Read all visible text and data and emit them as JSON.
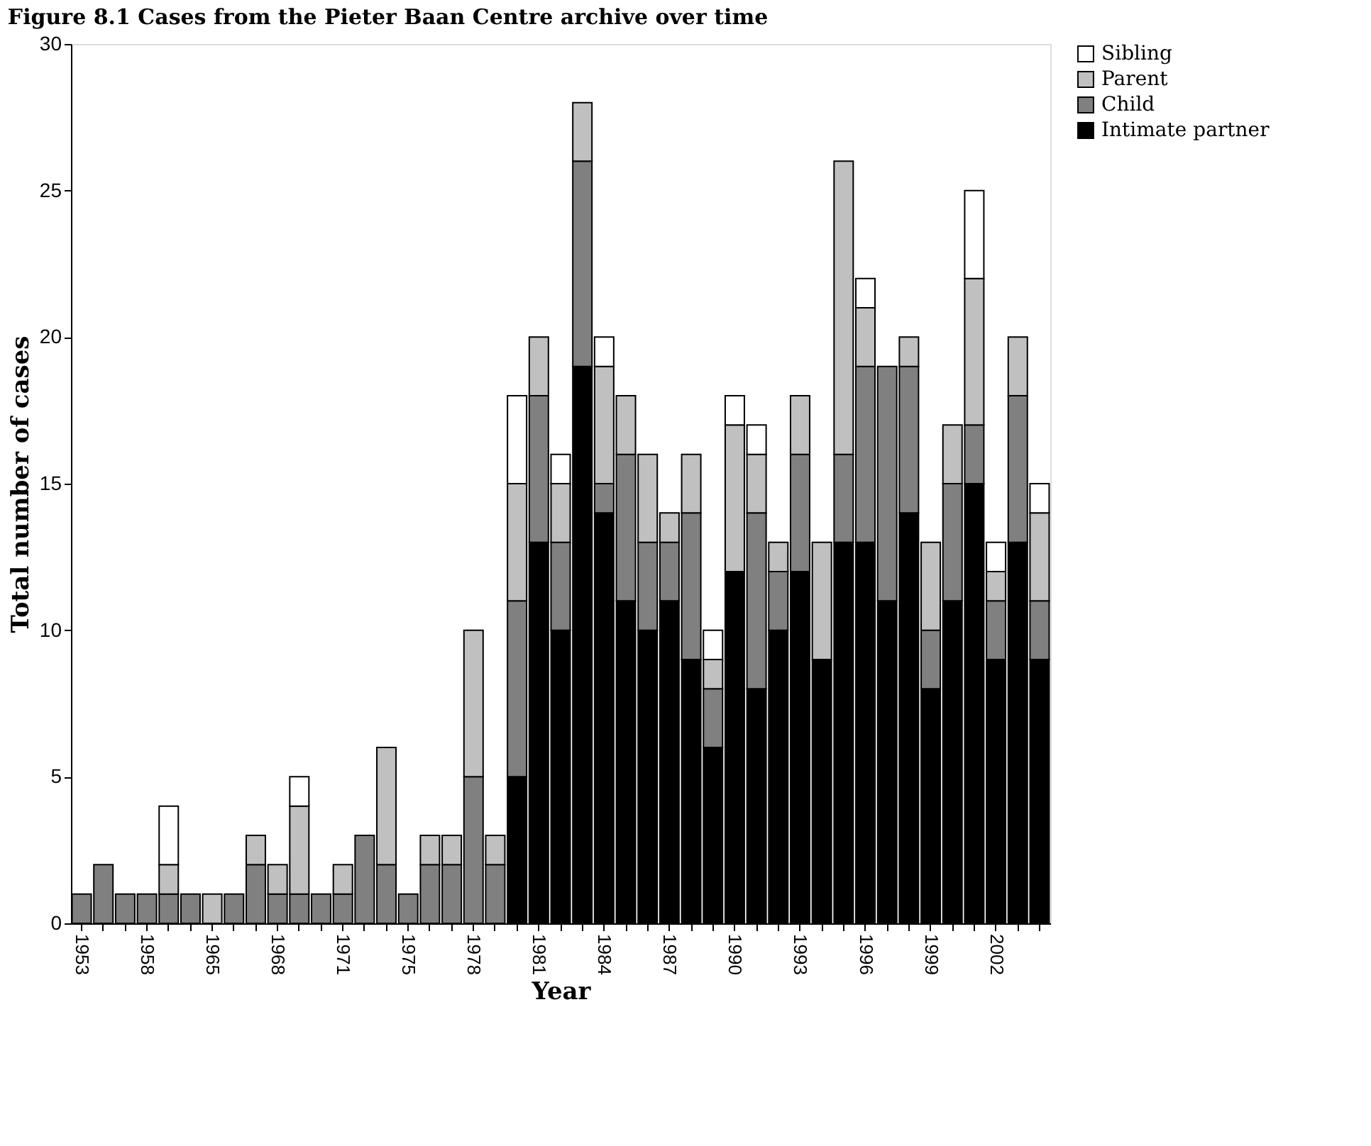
{
  "chart_data": {
    "type": "bar",
    "title": "Figure 8.1 Cases from the Pieter Baan Centre archive over time",
    "xlabel": "Year",
    "ylabel": "Total number of cases",
    "categories": [
      "1953",
      null,
      null,
      "1958",
      null,
      null,
      "1965",
      null,
      null,
      "1968",
      null,
      null,
      "1971",
      null,
      null,
      "1975",
      null,
      null,
      "1978",
      null,
      null,
      "1981",
      null,
      null,
      "1984",
      null,
      null,
      "1987",
      null,
      null,
      "1990",
      null,
      null,
      "1993",
      null,
      null,
      "1996",
      null,
      null,
      "1999",
      null,
      null,
      "2002",
      null,
      null
    ],
    "stacked": true,
    "series": [
      {
        "name": "Intimate partner",
        "color": "#000000",
        "values": [
          null,
          null,
          null,
          null,
          null,
          null,
          null,
          null,
          null,
          null,
          null,
          null,
          null,
          null,
          null,
          null,
          null,
          null,
          null,
          null,
          5,
          13,
          10,
          19,
          14,
          11,
          10,
          11,
          9,
          6,
          12,
          8,
          10,
          12,
          9,
          13,
          13,
          11,
          14,
          8,
          11,
          15,
          9,
          13,
          9
        ]
      },
      {
        "name": "Child",
        "color": "#808080",
        "values": [
          1,
          2,
          1,
          1,
          1,
          1,
          null,
          1,
          2,
          1,
          1,
          1,
          1,
          3,
          2,
          1,
          2,
          2,
          5,
          2,
          6,
          5,
          3,
          7,
          1,
          5,
          3,
          2,
          5,
          2,
          null,
          6,
          2,
          4,
          null,
          3,
          6,
          8,
          5,
          2,
          4,
          2,
          2,
          5,
          2
        ]
      },
      {
        "name": "Parent",
        "color": "#c0c0c0",
        "values": [
          null,
          null,
          null,
          null,
          1,
          null,
          1,
          null,
          1,
          1,
          3,
          null,
          1,
          null,
          4,
          null,
          1,
          1,
          5,
          1,
          4,
          2,
          2,
          2,
          4,
          2,
          3,
          1,
          2,
          1,
          5,
          2,
          1,
          2,
          4,
          10,
          2,
          null,
          1,
          3,
          2,
          5,
          1,
          2,
          3
        ]
      },
      {
        "name": "Sibling",
        "color": "#ffffff",
        "values": [
          null,
          null,
          null,
          null,
          2,
          null,
          null,
          null,
          null,
          null,
          1,
          null,
          null,
          null,
          null,
          null,
          null,
          null,
          null,
          null,
          3,
          null,
          1,
          null,
          1,
          null,
          null,
          null,
          null,
          1,
          1,
          1,
          null,
          null,
          null,
          null,
          1,
          null,
          null,
          null,
          null,
          3,
          1,
          null,
          1
        ]
      }
    ],
    "ylim": [
      0,
      30
    ],
    "yticks": [
      0,
      5,
      10,
      15,
      20,
      25,
      30
    ],
    "grid": false,
    "legend": "top right"
  }
}
